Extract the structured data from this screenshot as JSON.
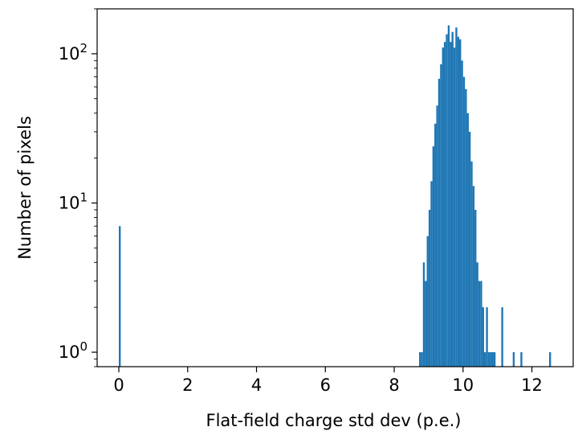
{
  "chart_data": {
    "type": "bar",
    "subtype": "histogram",
    "title": "",
    "xlabel": "Flat-field charge std dev (p.e.)",
    "ylabel": "Number of pixels",
    "xlim": [
      -0.63,
      13.2
    ],
    "ylim": [
      0.8,
      200
    ],
    "yscale": "log",
    "grid": false,
    "legend": "none",
    "bar_color": "#1f77b4",
    "xticks": [
      0,
      2,
      4,
      6,
      8,
      10,
      12
    ],
    "xtick_labels": [
      "0",
      "2",
      "4",
      "6",
      "8",
      "10",
      "12"
    ],
    "yticks": [
      {
        "base": "10",
        "exp": "0",
        "value": 1
      },
      {
        "base": "10",
        "exp": "1",
        "value": 10
      },
      {
        "base": "10",
        "exp": "2",
        "value": 100
      }
    ],
    "bin_width": 0.0556,
    "bin_starts": [
      0.0,
      8.7222,
      8.7778,
      8.8333,
      8.8889,
      8.9444,
      9.0,
      9.0556,
      9.1111,
      9.1667,
      9.2222,
      9.2778,
      9.3333,
      9.3889,
      9.4444,
      9.5,
      9.5556,
      9.6111,
      9.6667,
      9.7222,
      9.7778,
      9.8333,
      9.8889,
      9.9444,
      10.0,
      10.0556,
      10.1111,
      10.1667,
      10.2222,
      10.2778,
      10.3333,
      10.3889,
      10.4444,
      10.5,
      10.5556,
      10.6111,
      10.6667,
      10.7222,
      10.7778,
      10.8333,
      10.8889,
      11.1111,
      11.4444,
      11.6667,
      12.5
    ],
    "counts": [
      7,
      1,
      1,
      4,
      3,
      6,
      9,
      14,
      24,
      34,
      45,
      68,
      85,
      110,
      120,
      135,
      155,
      120,
      140,
      110,
      150,
      130,
      125,
      90,
      70,
      58,
      40,
      30,
      19,
      13,
      9,
      4,
      3,
      3,
      2,
      1,
      2,
      1,
      1,
      1,
      1,
      2,
      1,
      1,
      1
    ]
  }
}
